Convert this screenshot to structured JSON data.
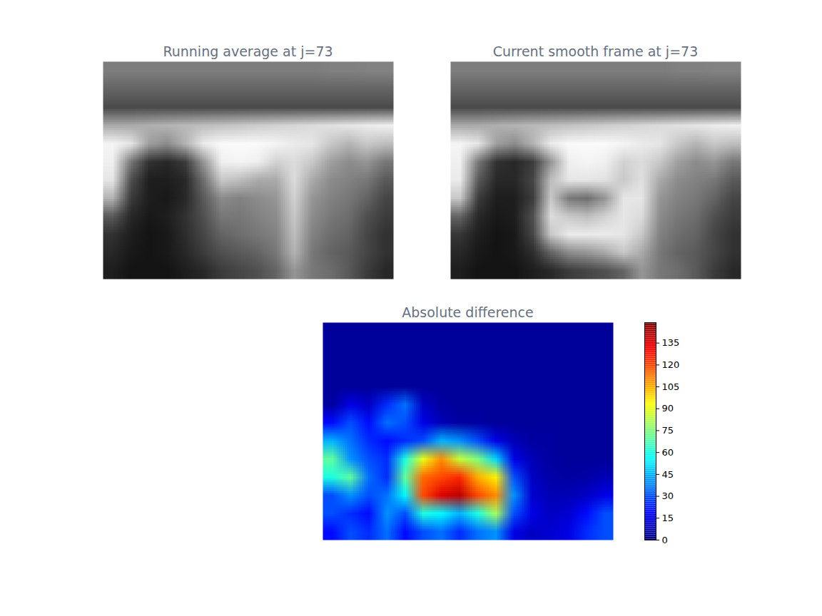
{
  "chart_data": [
    {
      "type": "heatmap",
      "title": "Running average at j=73",
      "color": "gray",
      "tick_labels": false,
      "color_range": [
        0,
        255
      ],
      "cells": [
        [
          125,
          125,
          125,
          125,
          125,
          125,
          125,
          125,
          125,
          125,
          125,
          125,
          128,
          128,
          130,
          130
        ],
        [
          100,
          100,
          100,
          100,
          100,
          100,
          100,
          100,
          100,
          100,
          100,
          100,
          100,
          100,
          100,
          100
        ],
        [
          75,
          75,
          75,
          75,
          75,
          75,
          75,
          75,
          75,
          75,
          75,
          75,
          75,
          75,
          75,
          75
        ],
        [
          170,
          170,
          175,
          180,
          185,
          190,
          195,
          200,
          205,
          210,
          215,
          220,
          225,
          230,
          235,
          240
        ],
        [
          245,
          230,
          160,
          140,
          180,
          235,
          250,
          250,
          250,
          245,
          235,
          230,
          200,
          180,
          200,
          190
        ],
        [
          240,
          120,
          50,
          40,
          60,
          150,
          240,
          245,
          240,
          210,
          220,
          200,
          160,
          140,
          150,
          120
        ],
        [
          230,
          80,
          30,
          30,
          40,
          110,
          200,
          190,
          170,
          170,
          220,
          170,
          140,
          130,
          120,
          90
        ],
        [
          180,
          60,
          30,
          25,
          40,
          90,
          140,
          130,
          140,
          150,
          210,
          150,
          130,
          120,
          100,
          70
        ],
        [
          90,
          40,
          25,
          30,
          50,
          80,
          120,
          120,
          130,
          140,
          200,
          140,
          120,
          110,
          80,
          60
        ],
        [
          50,
          30,
          20,
          25,
          45,
          70,
          100,
          110,
          120,
          130,
          190,
          130,
          110,
          100,
          70,
          50
        ],
        [
          40,
          25,
          20,
          25,
          40,
          60,
          80,
          90,
          100,
          120,
          180,
          120,
          100,
          90,
          70,
          50
        ],
        [
          30,
          20,
          20,
          20,
          30,
          40,
          60,
          70,
          80,
          100,
          150,
          120,
          110,
          90,
          60,
          40
        ]
      ]
    },
    {
      "type": "heatmap",
      "title": "Current smooth frame at j=73",
      "color": "gray",
      "tick_labels": false,
      "color_range": [
        0,
        255
      ],
      "cells": [
        [
          125,
          125,
          125,
          125,
          125,
          125,
          125,
          125,
          125,
          125,
          125,
          125,
          128,
          128,
          130,
          130
        ],
        [
          100,
          100,
          100,
          100,
          100,
          100,
          100,
          100,
          100,
          100,
          100,
          100,
          100,
          100,
          100,
          100
        ],
        [
          75,
          75,
          75,
          75,
          75,
          75,
          75,
          75,
          75,
          75,
          75,
          75,
          75,
          75,
          75,
          75
        ],
        [
          170,
          170,
          175,
          180,
          185,
          190,
          195,
          200,
          205,
          210,
          215,
          220,
          225,
          230,
          235,
          240
        ],
        [
          245,
          230,
          160,
          140,
          180,
          235,
          250,
          250,
          250,
          245,
          235,
          230,
          200,
          180,
          200,
          190
        ],
        [
          240,
          120,
          50,
          40,
          60,
          150,
          240,
          245,
          240,
          210,
          220,
          200,
          160,
          140,
          150,
          120
        ],
        [
          235,
          90,
          40,
          40,
          70,
          190,
          230,
          230,
          225,
          200,
          225,
          170,
          140,
          130,
          120,
          90
        ],
        [
          200,
          60,
          30,
          30,
          60,
          200,
          120,
          110,
          150,
          230,
          230,
          150,
          130,
          120,
          100,
          70
        ],
        [
          100,
          40,
          25,
          30,
          80,
          220,
          200,
          190,
          210,
          230,
          220,
          140,
          120,
          110,
          80,
          60
        ],
        [
          55,
          30,
          20,
          25,
          70,
          200,
          235,
          235,
          235,
          230,
          200,
          130,
          110,
          100,
          70,
          50
        ],
        [
          40,
          25,
          20,
          25,
          45,
          100,
          140,
          150,
          170,
          200,
          170,
          120,
          100,
          90,
          70,
          50
        ],
        [
          30,
          20,
          20,
          20,
          30,
          40,
          60,
          70,
          80,
          100,
          150,
          120,
          110,
          90,
          60,
          40
        ]
      ]
    },
    {
      "type": "heatmap",
      "title": "Absolute difference",
      "color": "jet",
      "tick_labels": false,
      "colorbar": {
        "range": [
          0,
          149
        ],
        "ticks": [
          0,
          15,
          30,
          45,
          60,
          75,
          90,
          105,
          120,
          135
        ]
      },
      "cells": [
        [
          4,
          4,
          4,
          4,
          4,
          4,
          4,
          4,
          4,
          4,
          4,
          4,
          4,
          4,
          4,
          4
        ],
        [
          4,
          4,
          4,
          4,
          4,
          4,
          4,
          4,
          4,
          4,
          4,
          4,
          4,
          4,
          4,
          4
        ],
        [
          4,
          4,
          4,
          4,
          4,
          4,
          4,
          4,
          4,
          4,
          4,
          4,
          4,
          4,
          4,
          4
        ],
        [
          4,
          4,
          4,
          4,
          4,
          4,
          4,
          4,
          4,
          4,
          4,
          4,
          4,
          4,
          4,
          4
        ],
        [
          5,
          15,
          10,
          25,
          35,
          10,
          5,
          4,
          4,
          4,
          4,
          4,
          4,
          4,
          4,
          4
        ],
        [
          20,
          30,
          20,
          35,
          30,
          15,
          8,
          5,
          5,
          4,
          4,
          4,
          4,
          4,
          4,
          4
        ],
        [
          45,
          35,
          25,
          20,
          25,
          30,
          45,
          40,
          30,
          15,
          8,
          5,
          5,
          4,
          4,
          4
        ],
        [
          70,
          40,
          30,
          25,
          60,
          90,
          110,
          85,
          75,
          50,
          15,
          8,
          5,
          4,
          4,
          4
        ],
        [
          60,
          70,
          35,
          25,
          70,
          115,
          120,
          125,
          105,
          95,
          30,
          10,
          6,
          5,
          6,
          8
        ],
        [
          30,
          40,
          30,
          35,
          55,
          120,
          135,
          140,
          120,
          110,
          40,
          12,
          8,
          8,
          10,
          15
        ],
        [
          30,
          25,
          20,
          40,
          30,
          60,
          55,
          45,
          60,
          80,
          30,
          15,
          10,
          12,
          20,
          30
        ],
        [
          20,
          30,
          25,
          35,
          20,
          30,
          35,
          25,
          35,
          40,
          15,
          10,
          12,
          15,
          25,
          30
        ]
      ]
    }
  ]
}
